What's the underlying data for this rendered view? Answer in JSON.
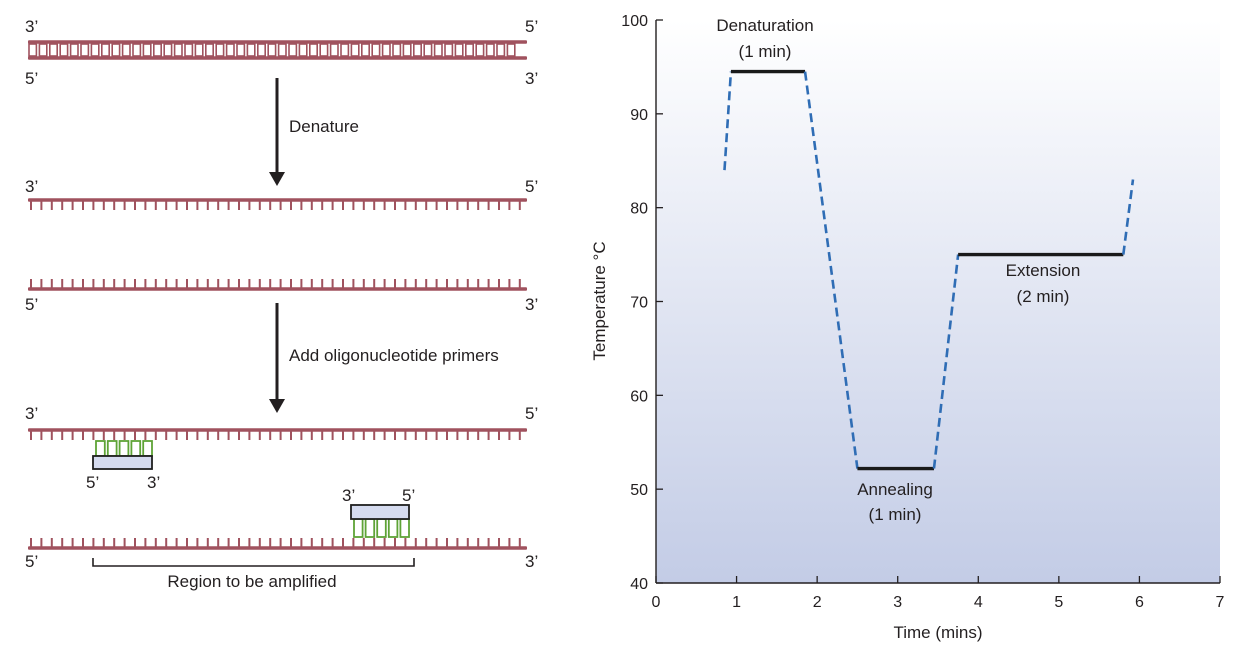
{
  "colors": {
    "strand": "#a0525e",
    "strand_fill": "#ffffff",
    "primer_outline": "#1f1f1f",
    "primer_fill": "#d5dbef",
    "primer_bond": "#5ea336",
    "profile_solid": "#1a1a1a",
    "profile_dashed": "#2f6db5",
    "plot_bg_top": "#ffffff",
    "plot_bg_bottom": "#c3cce6"
  },
  "pcr_steps": {
    "strand_labels": {
      "ds_top_left": "3’",
      "ds_top_right": "5’",
      "ds_bottom_left": "5’",
      "ds_bottom_right": "3’",
      "ss1_left": "3’",
      "ss1_right": "5’",
      "ss2_left": "5’",
      "ss2_right": "3’",
      "p1_strand_left": "3’",
      "p1_strand_right": "5’",
      "primer1_left": "5’",
      "primer1_right": "3’",
      "primer2_left": "3’",
      "primer2_right": "5’",
      "p2_strand_left": "5’",
      "p2_strand_right": "3’"
    },
    "step1": "Denature",
    "step2": "Add oligonucleotide primers",
    "region_label": "Region to be amplified"
  },
  "chart_data": {
    "type": "line",
    "title": "",
    "xlabel": "Time (mins)",
    "ylabel": "Temperature °C",
    "xlim": [
      0,
      7
    ],
    "ylim": [
      40,
      100
    ],
    "xticks": [
      0,
      1,
      2,
      3,
      4,
      5,
      6,
      7
    ],
    "yticks": [
      40,
      50,
      60,
      70,
      80,
      90,
      100
    ],
    "segments": [
      {
        "style": "dashed",
        "points": [
          [
            0.85,
            84
          ],
          [
            0.93,
            94.5
          ]
        ]
      },
      {
        "style": "solid",
        "name": "Denaturation",
        "points": [
          [
            0.93,
            94.5
          ],
          [
            1.85,
            94.5
          ]
        ]
      },
      {
        "style": "dashed",
        "points": [
          [
            1.85,
            94.5
          ],
          [
            2.5,
            52.2
          ]
        ]
      },
      {
        "style": "solid",
        "name": "Annealing",
        "points": [
          [
            2.5,
            52.2
          ],
          [
            3.45,
            52.2
          ]
        ]
      },
      {
        "style": "dashed",
        "points": [
          [
            3.45,
            52.2
          ],
          [
            3.75,
            75
          ]
        ]
      },
      {
        "style": "solid",
        "name": "Extension",
        "points": [
          [
            3.75,
            75
          ],
          [
            5.8,
            75
          ]
        ]
      },
      {
        "style": "dashed",
        "points": [
          [
            5.8,
            75
          ],
          [
            5.92,
            83
          ]
        ]
      }
    ],
    "annotations": [
      {
        "id": "denaturation",
        "text": "Denaturation",
        "sub": "(1 min)"
      },
      {
        "id": "annealing",
        "text": "Annealing",
        "sub": "(1 min)"
      },
      {
        "id": "extension",
        "text": "Extension",
        "sub": "(2 min)"
      }
    ]
  }
}
